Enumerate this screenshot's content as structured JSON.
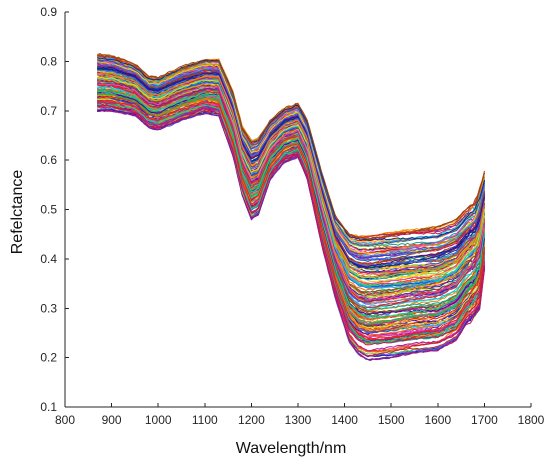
{
  "chart_data": {
    "type": "line",
    "title": "",
    "xlabel": "Wavelength/nm",
    "ylabel": "Refelctance",
    "xlim": [
      800,
      1800
    ],
    "ylim": [
      0.1,
      0.9
    ],
    "xticks": [
      "800",
      "900",
      "1000",
      "1100",
      "1200",
      "1300",
      "1400",
      "1500",
      "1600",
      "1700",
      "1800"
    ],
    "yticks": [
      "0.1",
      "0.2",
      "0.3",
      "0.4",
      "0.5",
      "0.6",
      "0.7",
      "0.8",
      "0.9"
    ],
    "grid": false,
    "legend": "none",
    "x_range_of_series": [
      870,
      1700
    ],
    "envelope": {
      "x": [
        870,
        900,
        950,
        980,
        1000,
        1050,
        1100,
        1130,
        1160,
        1180,
        1200,
        1215,
        1240,
        1270,
        1300,
        1320,
        1350,
        1380,
        1410,
        1430,
        1450,
        1500,
        1550,
        1600,
        1640,
        1660,
        1680,
        1690,
        1700
      ],
      "upper": [
        0.815,
        0.812,
        0.795,
        0.77,
        0.768,
        0.79,
        0.805,
        0.805,
        0.74,
        0.67,
        0.64,
        0.645,
        0.68,
        0.705,
        0.715,
        0.68,
        0.58,
        0.49,
        0.455,
        0.45,
        0.45,
        0.455,
        0.46,
        0.465,
        0.48,
        0.5,
        0.515,
        0.54,
        0.575
      ],
      "lower": [
        0.7,
        0.7,
        0.69,
        0.665,
        0.66,
        0.68,
        0.695,
        0.69,
        0.61,
        0.53,
        0.48,
        0.49,
        0.56,
        0.595,
        0.605,
        0.56,
        0.43,
        0.32,
        0.23,
        0.205,
        0.195,
        0.2,
        0.21,
        0.215,
        0.235,
        0.265,
        0.285,
        0.3,
        0.38
      ]
    },
    "series_count": 180,
    "series_colors": [
      "#e8251d",
      "#1f4fd1",
      "#f5a10a",
      "#7a1fa3",
      "#2eae3d",
      "#22b8e8",
      "#c9124a",
      "#0d2f8c",
      "#f2d40c",
      "#9b4514",
      "#e84bb3",
      "#10a39a",
      "#ff6b00",
      "#4a6de8",
      "#8cc63f",
      "#b5179e",
      "#d62828",
      "#3a0ca3",
      "#f77f00",
      "#06d6a0"
    ]
  }
}
